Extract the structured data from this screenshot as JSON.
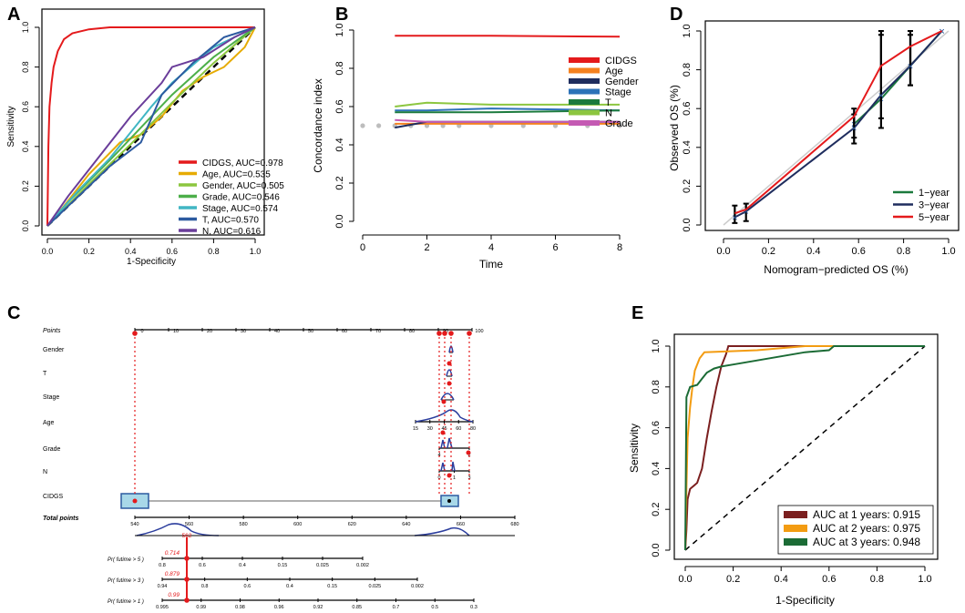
{
  "chart_data": [
    {
      "panel": "A",
      "type": "line",
      "xlabel": "1-Specificity",
      "ylabel": "Sensitivity",
      "xlim": [
        0,
        1
      ],
      "ylim": [
        0,
        1
      ],
      "xticks": [
        "0.0",
        "0.2",
        "0.4",
        "0.6",
        "0.8",
        "1.0"
      ],
      "yticks": [
        "0.0",
        "0.2",
        "0.4",
        "0.6",
        "0.8",
        "1.0"
      ],
      "legend_position": "bottom-right",
      "series": [
        {
          "name": "CIDGS, AUC=0.978",
          "color": "#e41a1c",
          "points": [
            [
              0,
              0
            ],
            [
              0.005,
              0.4
            ],
            [
              0.01,
              0.6
            ],
            [
              0.02,
              0.72
            ],
            [
              0.03,
              0.8
            ],
            [
              0.05,
              0.88
            ],
            [
              0.08,
              0.94
            ],
            [
              0.12,
              0.97
            ],
            [
              0.2,
              0.99
            ],
            [
              0.3,
              1.0
            ],
            [
              1,
              1
            ]
          ]
        },
        {
          "name": "Age, AUC=0.535",
          "color": "#e6ab02",
          "points": [
            [
              0,
              0
            ],
            [
              0.05,
              0.06
            ],
            [
              0.2,
              0.26
            ],
            [
              0.35,
              0.42
            ],
            [
              0.45,
              0.46
            ],
            [
              0.55,
              0.55
            ],
            [
              0.65,
              0.68
            ],
            [
              0.75,
              0.75
            ],
            [
              0.85,
              0.8
            ],
            [
              0.95,
              0.9
            ],
            [
              1,
              1
            ]
          ]
        },
        {
          "name": "Gender, AUC=0.505",
          "color": "#8cc63f",
          "points": [
            [
              0,
              0
            ],
            [
              0.2,
              0.21
            ],
            [
              0.4,
              0.41
            ],
            [
              0.6,
              0.62
            ],
            [
              0.8,
              0.82
            ],
            [
              1,
              1
            ]
          ]
        },
        {
          "name": "Grade, AUC=0.546",
          "color": "#4daf4a",
          "points": [
            [
              0,
              0
            ],
            [
              0.1,
              0.12
            ],
            [
              0.3,
              0.33
            ],
            [
              0.5,
              0.55
            ],
            [
              0.6,
              0.66
            ],
            [
              0.8,
              0.85
            ],
            [
              1,
              1
            ]
          ]
        },
        {
          "name": "Stage, AUC=0.574",
          "color": "#41b6c4",
          "points": [
            [
              0,
              0
            ],
            [
              0.15,
              0.18
            ],
            [
              0.3,
              0.34
            ],
            [
              0.5,
              0.6
            ],
            [
              0.6,
              0.72
            ],
            [
              0.8,
              0.9
            ],
            [
              1,
              1
            ]
          ]
        },
        {
          "name": "T, AUC=0.570",
          "color": "#2c5aa0",
          "points": [
            [
              0,
              0
            ],
            [
              0.3,
              0.3
            ],
            [
              0.45,
              0.42
            ],
            [
              0.55,
              0.66
            ],
            [
              0.7,
              0.82
            ],
            [
              0.85,
              0.95
            ],
            [
              1,
              1
            ]
          ]
        },
        {
          "name": "N, AUC=0.616",
          "color": "#6a3d9a",
          "points": [
            [
              0,
              0
            ],
            [
              0.1,
              0.15
            ],
            [
              0.25,
              0.35
            ],
            [
              0.4,
              0.55
            ],
            [
              0.55,
              0.72
            ],
            [
              0.6,
              0.8
            ],
            [
              0.75,
              0.85
            ],
            [
              0.9,
              0.95
            ],
            [
              1,
              1
            ]
          ]
        }
      ]
    },
    {
      "panel": "B",
      "type": "line",
      "xlabel": "Time",
      "ylabel": "Concordance index",
      "xlim": [
        0,
        8
      ],
      "ylim": [
        0,
        1
      ],
      "xticks": [
        "0",
        "2",
        "4",
        "6",
        "8"
      ],
      "yticks": [
        "0.0",
        "0.2",
        "0.4",
        "0.6",
        "0.8",
        "1.0"
      ],
      "legend_position": "top-right",
      "series": [
        {
          "name": "CIDGS",
          "color": "#e41a1c",
          "points": [
            [
              1,
              0.97
            ],
            [
              4,
              0.97
            ],
            [
              8,
              0.965
            ]
          ]
        },
        {
          "name": "Age",
          "color": "#f58220",
          "points": [
            [
              1,
              0.51
            ],
            [
              2,
              0.51
            ],
            [
              4,
              0.51
            ],
            [
              8,
              0.51
            ]
          ]
        },
        {
          "name": "Gender",
          "color": "#1f2d5e",
          "points": [
            [
              1,
              0.49
            ],
            [
              2,
              0.52
            ],
            [
              4,
              0.52
            ],
            [
              8,
              0.52
            ]
          ]
        },
        {
          "name": "Stage",
          "color": "#2c72b8",
          "points": [
            [
              1,
              0.58
            ],
            [
              2,
              0.58
            ],
            [
              4,
              0.59
            ],
            [
              8,
              0.58
            ]
          ]
        },
        {
          "name": "T",
          "color": "#1b7a3d",
          "points": [
            [
              1,
              0.57
            ],
            [
              2,
              0.57
            ],
            [
              4,
              0.57
            ],
            [
              8,
              0.58
            ]
          ]
        },
        {
          "name": "N",
          "color": "#8cc63f",
          "points": [
            [
              1,
              0.6
            ],
            [
              2,
              0.62
            ],
            [
              4,
              0.61
            ],
            [
              8,
              0.61
            ]
          ]
        },
        {
          "name": "Grade",
          "color": "#c45ab3",
          "points": [
            [
              1,
              0.53
            ],
            [
              2,
              0.52
            ],
            [
              4,
              0.52
            ],
            [
              8,
              0.52
            ]
          ]
        }
      ],
      "reference": {
        "value": 0.5,
        "x": [
          0,
          0.5,
          1,
          1.5,
          2,
          2.5,
          3,
          4,
          5,
          6,
          7,
          8
        ]
      }
    },
    {
      "panel": "D",
      "type": "line",
      "xlabel": "Nomogram−predicted OS (%)",
      "ylabel": "Observed OS (%)",
      "xlim": [
        0,
        1
      ],
      "ylim": [
        0,
        1
      ],
      "xticks": [
        "0.0",
        "0.2",
        "0.4",
        "0.6",
        "0.8",
        "1.0"
      ],
      "yticks": [
        "0.0",
        "0.2",
        "0.4",
        "0.6",
        "0.8",
        "1.0"
      ],
      "legend_position": "bottom-right",
      "series": [
        {
          "name": "1−year",
          "color": "#1b7a3d",
          "points": [
            [
              0.58,
              0.52
            ],
            [
              0.7,
              0.65
            ],
            [
              0.83,
              0.82
            ],
            [
              0.97,
              1.0
            ]
          ],
          "errors": [
            [
              0.58,
              0.45,
              0.6
            ],
            [
              0.7,
              0.55,
              0.98
            ],
            [
              0.83,
              0.72,
              0.98
            ]
          ]
        },
        {
          "name": "3−year",
          "color": "#1f2d5e",
          "points": [
            [
              0.05,
              0.04
            ],
            [
              0.1,
              0.07
            ],
            [
              0.58,
              0.5
            ],
            [
              0.7,
              0.67
            ],
            [
              0.83,
              0.82
            ],
            [
              0.97,
              1.0
            ]
          ],
          "errors": [
            [
              0.05,
              0.01,
              0.1
            ],
            [
              0.1,
              0.02,
              0.11
            ],
            [
              0.58,
              0.42,
              0.57
            ],
            [
              0.7,
              0.5,
              1.0
            ],
            [
              0.83,
              0.72,
              1.0
            ]
          ]
        },
        {
          "name": "5−year",
          "color": "#e41a1c",
          "points": [
            [
              0.05,
              0.06
            ],
            [
              0.1,
              0.08
            ],
            [
              0.58,
              0.56
            ],
            [
              0.7,
              0.82
            ],
            [
              0.83,
              0.92
            ],
            [
              0.97,
              1.0
            ]
          ]
        }
      ]
    },
    {
      "panel": "E",
      "type": "line",
      "xlabel": "1-Specificity",
      "ylabel": "Sensitivity",
      "xlim": [
        0,
        1
      ],
      "ylim": [
        0,
        1
      ],
      "xticks": [
        "0.0",
        "0.2",
        "0.4",
        "0.6",
        "0.8",
        "1.0"
      ],
      "yticks": [
        "0.0",
        "0.2",
        "0.4",
        "0.6",
        "0.8",
        "1.0"
      ],
      "legend_position": "bottom-right",
      "series": [
        {
          "name": "AUC at 1 years: 0.915",
          "color": "#7b1f1f",
          "points": [
            [
              0,
              0
            ],
            [
              0.005,
              0.1
            ],
            [
              0.01,
              0.25
            ],
            [
              0.02,
              0.3
            ],
            [
              0.05,
              0.33
            ],
            [
              0.07,
              0.4
            ],
            [
              0.09,
              0.55
            ],
            [
              0.11,
              0.68
            ],
            [
              0.13,
              0.8
            ],
            [
              0.15,
              0.9
            ],
            [
              0.17,
              0.96
            ],
            [
              0.18,
              1.0
            ],
            [
              1,
              1
            ]
          ]
        },
        {
          "name": "AUC at 2 years: 0.975",
          "color": "#f39c12",
          "points": [
            [
              0,
              0
            ],
            [
              0.005,
              0.3
            ],
            [
              0.01,
              0.55
            ],
            [
              0.02,
              0.7
            ],
            [
              0.03,
              0.8
            ],
            [
              0.04,
              0.88
            ],
            [
              0.06,
              0.94
            ],
            [
              0.08,
              0.97
            ],
            [
              0.3,
              0.98
            ],
            [
              0.5,
              1.0
            ],
            [
              1,
              1
            ]
          ]
        },
        {
          "name": "AUC at 3 years: 0.948",
          "color": "#1b6b35",
          "points": [
            [
              0,
              0
            ],
            [
              0.005,
              0.75
            ],
            [
              0.02,
              0.8
            ],
            [
              0.05,
              0.81
            ],
            [
              0.07,
              0.84
            ],
            [
              0.09,
              0.87
            ],
            [
              0.12,
              0.89
            ],
            [
              0.15,
              0.9
            ],
            [
              0.2,
              0.91
            ],
            [
              0.3,
              0.93
            ],
            [
              0.4,
              0.95
            ],
            [
              0.5,
              0.97
            ],
            [
              0.6,
              0.98
            ],
            [
              0.62,
              1.0
            ],
            [
              1,
              1
            ]
          ]
        }
      ]
    },
    {
      "panel": "C",
      "type": "nomogram",
      "rows": [
        {
          "label": "Points",
          "ticks": [
            "0",
            "10",
            "20",
            "30",
            "40",
            "50",
            "60",
            "70",
            "80",
            "90",
            "100"
          ]
        },
        {
          "label": "Gender",
          "ticks": []
        },
        {
          "label": "T",
          "ticks": []
        },
        {
          "label": "Stage",
          "ticks": []
        },
        {
          "label": "Age",
          "ticks": [
            "15",
            "30",
            "45",
            "60",
            "80"
          ]
        },
        {
          "label": "Grade",
          "ticks": [
            "4",
            "2"
          ]
        },
        {
          "label": "N",
          "ticks": [
            "0",
            "1",
            "3"
          ]
        },
        {
          "label": "CIDGS",
          "ticks": [
            "low",
            "high"
          ]
        },
        {
          "label": "Total points",
          "ticks": [
            "540",
            "560",
            "580",
            "600",
            "620",
            "640",
            "660",
            "680"
          ]
        },
        {
          "label": "Pr( futime > 5 )",
          "ticks": [
            "0.8",
            "0.6",
            "0.4",
            "0.15",
            "0.025",
            "0.002"
          ],
          "marker": "0.714"
        },
        {
          "label": "Pr( futime > 3 )",
          "ticks": [
            "0.94",
            "0.8",
            "0.6",
            "0.4",
            "0.15",
            "0.025",
            "0.002"
          ],
          "marker": "0.879"
        },
        {
          "label": "Pr( futime > 1 )",
          "ticks": [
            "0.995",
            "0.99",
            "0.98",
            "0.96",
            "0.92",
            "0.85",
            "0.7",
            "0.5",
            "0.3"
          ],
          "marker": "0.99"
        }
      ],
      "total_marker": "562"
    }
  ],
  "panel_labels": [
    "A",
    "B",
    "C",
    "D",
    "E"
  ]
}
